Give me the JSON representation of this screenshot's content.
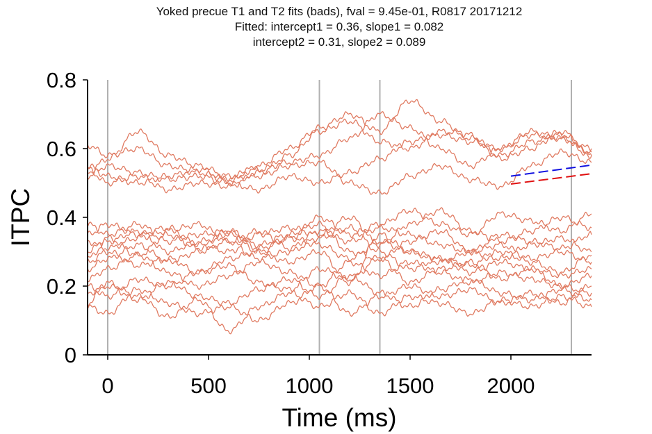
{
  "chart_data": {
    "type": "line",
    "title_lines": [
      "Yoked precue T1 and T2 fits (bads), fval = 9.45e-01, R0817 20171212",
      "Fitted: intercept1 = 0.36, slope1 = 0.082",
      "intercept2 = 0.31, slope2 = 0.089"
    ],
    "xlabel": "Time (ms)",
    "ylabel": "ITPC",
    "xlim": [
      -100,
      2400
    ],
    "ylim": [
      0,
      0.8
    ],
    "xticks": [
      0,
      500,
      1000,
      1500,
      2000
    ],
    "yticks": [
      0,
      0.2,
      0.4,
      0.6,
      0.8
    ],
    "xtick_labels": [
      "0",
      "500",
      "1000",
      "1500",
      "2000"
    ],
    "ytick_labels": [
      "0",
      "0.2",
      "0.4",
      "0.6",
      "0.8"
    ],
    "event_lines_x": [
      0,
      1050,
      1350,
      2300
    ],
    "grid": false,
    "colors": {
      "traces": "#e07b62",
      "event_lines": "#b0b0b0",
      "fit1": "#1010e0",
      "fit2": "#e01010"
    },
    "fit_lines": [
      {
        "color": "blue",
        "style": "dashed",
        "x": [
          2000,
          2400
        ],
        "y": [
          0.52,
          0.552
        ]
      },
      {
        "color": "red",
        "style": "dashed",
        "x": [
          2000,
          2400
        ],
        "y": [
          0.497,
          0.527
        ]
      }
    ],
    "trace_sample_x": [
      -100,
      0,
      150,
      300,
      450,
      600,
      750,
      900,
      1050,
      1200,
      1350,
      1500,
      1650,
      1800,
      1950,
      2100,
      2250,
      2400
    ],
    "series": [
      {
        "values": [
          0.61,
          0.58,
          0.6,
          0.55,
          0.53,
          0.51,
          0.52,
          0.55,
          0.56,
          0.5,
          0.47,
          0.52,
          0.55,
          0.51,
          0.49,
          0.55,
          0.59,
          0.56
        ]
      },
      {
        "values": [
          0.55,
          0.52,
          0.5,
          0.52,
          0.54,
          0.51,
          0.55,
          0.6,
          0.66,
          0.7,
          0.65,
          0.74,
          0.68,
          0.63,
          0.58,
          0.62,
          0.64,
          0.6
        ]
      },
      {
        "values": [
          0.54,
          0.5,
          0.52,
          0.48,
          0.5,
          0.49,
          0.53,
          0.58,
          0.65,
          0.68,
          0.62,
          0.6,
          0.65,
          0.64,
          0.57,
          0.6,
          0.65,
          0.58
        ]
      },
      {
        "values": [
          0.53,
          0.57,
          0.65,
          0.58,
          0.55,
          0.52,
          0.54,
          0.56,
          0.58,
          0.63,
          0.7,
          0.66,
          0.6,
          0.55,
          0.6,
          0.64,
          0.63,
          0.59
        ]
      },
      {
        "values": [
          0.52,
          0.55,
          0.53,
          0.51,
          0.52,
          0.5,
          0.48,
          0.52,
          0.5,
          0.53,
          0.57,
          0.62,
          0.64,
          0.62,
          0.6,
          0.65,
          0.63,
          0.58
        ]
      },
      {
        "values": [
          0.38,
          0.35,
          0.38,
          0.33,
          0.35,
          0.36,
          0.31,
          0.34,
          0.4,
          0.35,
          0.38,
          0.42,
          0.38,
          0.35,
          0.41,
          0.39,
          0.36,
          0.41
        ]
      },
      {
        "values": [
          0.35,
          0.38,
          0.35,
          0.37,
          0.32,
          0.3,
          0.35,
          0.37,
          0.35,
          0.4,
          0.32,
          0.38,
          0.42,
          0.36,
          0.33,
          0.36,
          0.4,
          0.37
        ]
      },
      {
        "values": [
          0.33,
          0.31,
          0.34,
          0.36,
          0.38,
          0.33,
          0.36,
          0.31,
          0.36,
          0.33,
          0.37,
          0.35,
          0.32,
          0.3,
          0.35,
          0.33,
          0.31,
          0.35
        ]
      },
      {
        "values": [
          0.3,
          0.34,
          0.29,
          0.35,
          0.31,
          0.36,
          0.32,
          0.35,
          0.38,
          0.3,
          0.28,
          0.33,
          0.36,
          0.3,
          0.28,
          0.32,
          0.34,
          0.3
        ]
      },
      {
        "values": [
          0.28,
          0.33,
          0.36,
          0.3,
          0.33,
          0.35,
          0.3,
          0.34,
          0.32,
          0.28,
          0.33,
          0.3,
          0.27,
          0.3,
          0.32,
          0.28,
          0.3,
          0.27
        ]
      },
      {
        "values": [
          0.27,
          0.3,
          0.26,
          0.28,
          0.24,
          0.28,
          0.3,
          0.27,
          0.3,
          0.21,
          0.35,
          0.3,
          0.28,
          0.26,
          0.3,
          0.27,
          0.24,
          0.29
        ]
      },
      {
        "values": [
          0.25,
          0.28,
          0.32,
          0.27,
          0.3,
          0.33,
          0.28,
          0.3,
          0.34,
          0.37,
          0.3,
          0.25,
          0.28,
          0.24,
          0.27,
          0.25,
          0.23,
          0.25
        ]
      },
      {
        "values": [
          0.22,
          0.25,
          0.29,
          0.24,
          0.2,
          0.23,
          0.27,
          0.24,
          0.2,
          0.27,
          0.23,
          0.27,
          0.24,
          0.21,
          0.24,
          0.22,
          0.2,
          0.23
        ]
      },
      {
        "values": [
          0.2,
          0.17,
          0.22,
          0.2,
          0.24,
          0.26,
          0.21,
          0.19,
          0.25,
          0.22,
          0.28,
          0.21,
          0.25,
          0.27,
          0.22,
          0.25,
          0.2,
          0.18
        ]
      },
      {
        "values": [
          0.18,
          0.2,
          0.16,
          0.21,
          0.17,
          0.15,
          0.19,
          0.22,
          0.17,
          0.23,
          0.18,
          0.14,
          0.19,
          0.22,
          0.18,
          0.16,
          0.19,
          0.16
        ]
      },
      {
        "values": [
          0.15,
          0.21,
          0.17,
          0.11,
          0.16,
          0.07,
          0.14,
          0.18,
          0.14,
          0.18,
          0.12,
          0.17,
          0.15,
          0.12,
          0.16,
          0.14,
          0.17,
          0.14
        ]
      },
      {
        "values": [
          0.14,
          0.12,
          0.19,
          0.15,
          0.12,
          0.14,
          0.1,
          0.15,
          0.2,
          0.12,
          0.17,
          0.2,
          0.17,
          0.19,
          0.15,
          0.18,
          0.15,
          0.2
        ]
      }
    ]
  }
}
